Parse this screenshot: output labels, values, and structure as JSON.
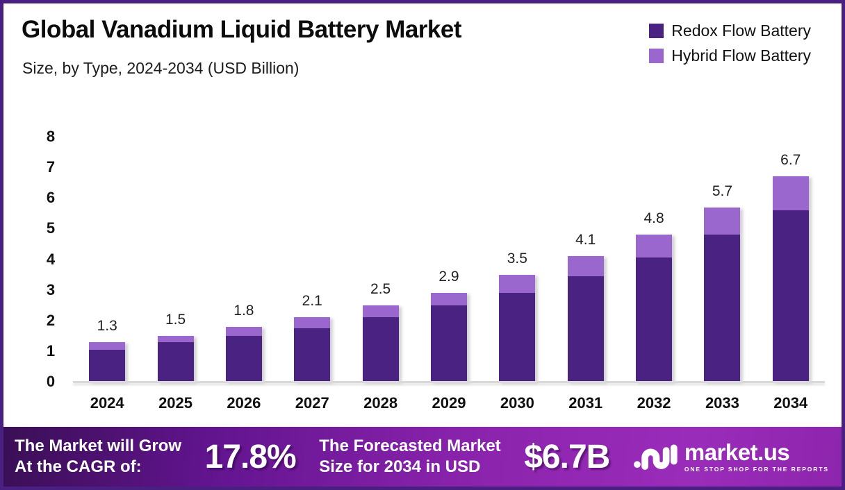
{
  "header": {
    "title": "Global Vanadium Liquid Battery Market",
    "subtitle": "Size, by Type, 2024-2034 (USD Billion)"
  },
  "legend": [
    {
      "label": "Redox Flow Battery",
      "color": "#4a2282"
    },
    {
      "label": "Hybrid Flow Battery",
      "color": "#9a67cf"
    }
  ],
  "chart_data": {
    "type": "bar",
    "stacked": true,
    "title": "Global Vanadium Liquid Battery Market Size, by Type, 2024-2034 (USD Billion)",
    "categories": [
      "2024",
      "2025",
      "2026",
      "2027",
      "2028",
      "2029",
      "2030",
      "2031",
      "2032",
      "2033",
      "2034"
    ],
    "series": [
      {
        "name": "Redox Flow Battery",
        "color": "#4a2282",
        "values": [
          1.05,
          1.3,
          1.5,
          1.75,
          2.1,
          2.5,
          2.9,
          3.45,
          4.05,
          4.8,
          5.6
        ]
      },
      {
        "name": "Hybrid Flow Battery",
        "color": "#9a67cf",
        "values": [
          0.25,
          0.2,
          0.3,
          0.35,
          0.4,
          0.4,
          0.6,
          0.65,
          0.75,
          0.9,
          1.1
        ]
      }
    ],
    "totals": [
      1.3,
      1.5,
      1.8,
      2.1,
      2.5,
      2.9,
      3.5,
      4.1,
      4.8,
      5.7,
      6.7
    ],
    "total_labels": [
      "1.3",
      "1.5",
      "1.8",
      "2.1",
      "2.5",
      "2.9",
      "3.5",
      "4.1",
      "4.8",
      "5.7",
      "6.7"
    ],
    "xlabel": "",
    "ylabel": "",
    "ylim": [
      0,
      8
    ],
    "yticks": [
      0,
      1,
      2,
      3,
      4,
      5,
      6,
      7,
      8
    ],
    "grid": false,
    "legend_position": "top-right"
  },
  "footer": {
    "cagr_label_line1": "The Market will Grow",
    "cagr_label_line2": "At the CAGR of:",
    "cagr_value": "17.8%",
    "forecast_label_line1": "The Forecasted Market",
    "forecast_label_line2": "Size for 2034 in USD",
    "forecast_value": "$6.7B",
    "brand_name": "market.us",
    "brand_tagline": "ONE STOP SHOP FOR THE REPORTS"
  },
  "colors": {
    "border": "#4a1f82",
    "redox": "#4a2282",
    "hybrid": "#9a67cf",
    "axis_line": "#d9d9d9",
    "footer_gradient_start": "#3a0f55",
    "footer_gradient_end": "#8e25ad",
    "text": "#0c0c0c",
    "footer_text": "#ffffff"
  }
}
